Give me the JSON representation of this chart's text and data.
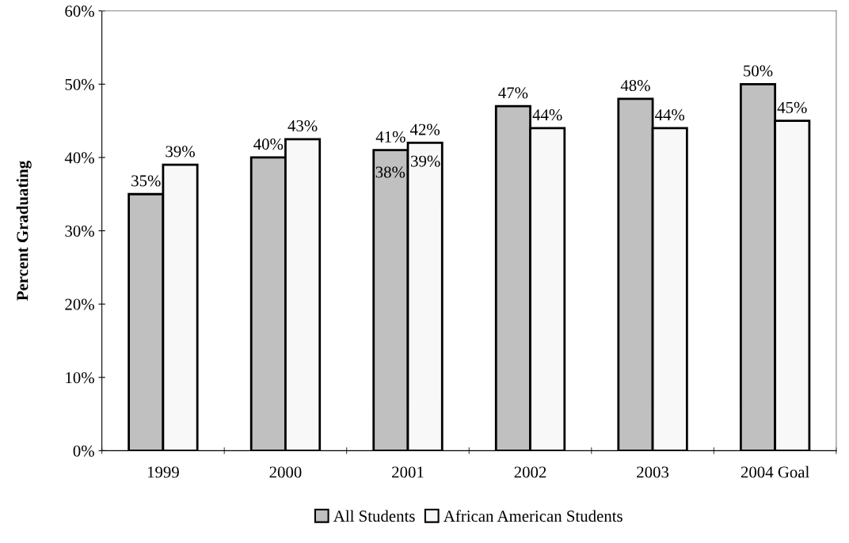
{
  "chart_data": {
    "type": "bar",
    "ylabel": "Percent Graduating",
    "categories": [
      "1999",
      "2000",
      "2001",
      "2002",
      "2003",
      "2004 Goal"
    ],
    "series": [
      {
        "name": "All Students",
        "color": "#c0c0c0",
        "values": [
          35,
          40,
          41,
          47,
          48,
          50
        ],
        "value_labels": [
          "35%",
          "40%",
          "41%",
          "47%",
          "48%",
          "50%"
        ]
      },
      {
        "name": "African American Students",
        "color": "#f8f8f8",
        "values": [
          39,
          42.5,
          42,
          44,
          44,
          45
        ],
        "value_labels": [
          "39%",
          "43%",
          "42%",
          "44%",
          "44%",
          "45%"
        ]
      }
    ],
    "ylim": [
      0,
      60
    ],
    "yticks": [
      {
        "value": 0,
        "label": "0%"
      },
      {
        "value": 10,
        "label": "10%"
      },
      {
        "value": 20,
        "label": "20%"
      },
      {
        "value": 30,
        "label": "30%"
      },
      {
        "value": 40,
        "label": "40%"
      },
      {
        "value": 50,
        "label": "50%"
      },
      {
        "value": 60,
        "label": "60%"
      }
    ],
    "annotations": [
      {
        "text": "38%",
        "x": "2001",
        "y": 37.8
      },
      {
        "text": "39%",
        "x": "2001",
        "y": 39.3
      }
    ],
    "grid": false,
    "legend": "bottom"
  }
}
